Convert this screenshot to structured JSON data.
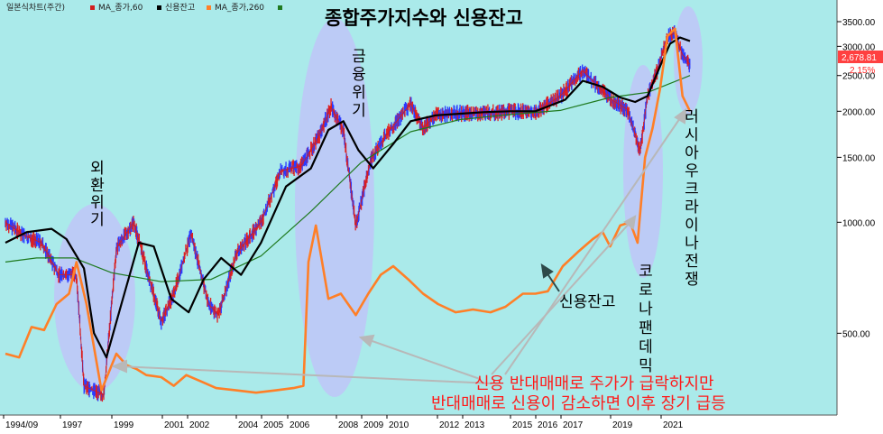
{
  "header": {
    "legend": [
      {
        "label": "일본식차트(주간)",
        "color": "#d21e1e"
      },
      {
        "label": "MA_종가,60",
        "color": "#000000"
      },
      {
        "label": "신용잔고",
        "color": "#ff7f27"
      },
      {
        "label": "MA_종가,260",
        "color": "#1f7a1f"
      }
    ]
  },
  "chart_data": {
    "type": "line",
    "title": "종합주가지수와 신용잔고",
    "x_ticks": [
      "1994/09",
      "1997",
      "1999",
      "2001",
      "2002",
      "2004",
      "2005",
      "2006",
      "2008",
      "2009",
      "2010",
      "2012",
      "2013",
      "2015",
      "2016",
      "2017",
      "2019",
      "2021"
    ],
    "y_ticks": [
      "3500.00",
      "3000.00",
      "2500.00",
      "2000.00",
      "1500.00",
      "1000.00",
      "500.00"
    ],
    "y_scale": "log",
    "ylim": [
      300,
      3600
    ],
    "current_value": "2,678.81",
    "change_pct": "2.15%",
    "grid": false,
    "series": [
      {
        "name": "일본식차트(주간)",
        "color": "#d21e1e",
        "x": [
          1994.75,
          1995.5,
          1996.2,
          1996.9,
          1997.6,
          1997.9,
          1998.7,
          1999.2,
          1999.9,
          2000.5,
          2001.0,
          2001.5,
          2002.2,
          2002.9,
          2003.3,
          2004.0,
          2005.0,
          2005.8,
          2006.6,
          2007.3,
          2007.8,
          2008.3,
          2008.8,
          2009.4,
          2010.0,
          2011.0,
          2011.5,
          2012.0,
          2013.0,
          2014.0,
          2015.0,
          2016.0,
          2017.0,
          2017.9,
          2018.6,
          2019.1,
          2019.7,
          2020.2,
          2020.5,
          2020.9,
          2021.3,
          2021.6,
          2021.9,
          2022.2
        ],
        "y": [
          1000,
          920,
          880,
          720,
          720,
          360,
          340,
          850,
          1000,
          710,
          540,
          640,
          930,
          600,
          560,
          820,
          1000,
          1380,
          1420,
          1700,
          2060,
          1780,
          980,
          1480,
          1720,
          2100,
          1800,
          1950,
          1980,
          1980,
          2000,
          1990,
          2200,
          2580,
          2300,
          2140,
          2020,
          1560,
          2200,
          2600,
          3200,
          3250,
          2850,
          2680
        ]
      },
      {
        "name": "MA_종가,60",
        "color": "#000000",
        "x": [
          1994.75,
          1995.6,
          1996.6,
          1997.2,
          1997.9,
          1998.3,
          1998.8,
          1999.4,
          2000.1,
          2000.7,
          2001.4,
          2002.1,
          2002.7,
          2003.4,
          2004.2,
          2005.0,
          2006.0,
          2007.0,
          2007.7,
          2008.3,
          2008.9,
          2009.5,
          2010.3,
          2011.0,
          2012.0,
          2013.0,
          2014.0,
          2015.0,
          2016.0,
          2017.2,
          2017.9,
          2018.7,
          2019.4,
          2020.0,
          2020.5,
          2021.0,
          2021.4,
          2021.8,
          2022.2
        ],
        "y": [
          880,
          940,
          960,
          900,
          750,
          500,
          430,
          600,
          880,
          860,
          620,
          570,
          700,
          800,
          720,
          880,
          1250,
          1400,
          1780,
          1880,
          1570,
          1400,
          1630,
          1880,
          1950,
          1970,
          1990,
          2000,
          2000,
          2150,
          2420,
          2330,
          2180,
          2120,
          2200,
          2650,
          3050,
          3170,
          3100
        ]
      },
      {
        "name": "MA_종가,260",
        "color": "#1f7a1f",
        "x": [
          1994.75,
          1996.0,
          1997.5,
          1999.0,
          2001.0,
          2003.0,
          2005.0,
          2007.0,
          2009.0,
          2011.0,
          2013.0,
          2015.0,
          2017.0,
          2019.0,
          2020.5,
          2022.2
        ],
        "y": [
          780,
          800,
          800,
          730,
          690,
          700,
          810,
          1070,
          1450,
          1760,
          1900,
          1960,
          2010,
          2180,
          2250,
          2500
        ]
      },
      {
        "name": "신용잔고",
        "color": "#ff7f27",
        "x": [
          1994.75,
          1995.3,
          1995.8,
          1996.3,
          1996.8,
          1997.3,
          1997.6,
          1998.0,
          1998.6,
          1999.2,
          1999.6,
          2000.0,
          2000.4,
          2001.0,
          2001.5,
          2002.0,
          2002.6,
          2003.2,
          2004.0,
          2004.8,
          2005.6,
          2006.3,
          2006.7,
          2006.9,
          2007.2,
          2007.7,
          2008.2,
          2008.8,
          2009.3,
          2009.8,
          2010.3,
          2010.9,
          2011.5,
          2012.1,
          2012.8,
          2013.5,
          2014.2,
          2014.8,
          2015.5,
          2016.0,
          2016.5,
          2017.1,
          2017.7,
          2018.3,
          2018.7,
          2019.0,
          2019.4,
          2019.8,
          2020.1,
          2020.4,
          2020.7,
          2021.0,
          2021.3,
          2021.6,
          2021.9,
          2022.2
        ],
        "y": [
          440,
          430,
          520,
          510,
          600,
          640,
          780,
          600,
          350,
          440,
          410,
          400,
          385,
          380,
          360,
          385,
          370,
          355,
          350,
          345,
          350,
          355,
          360,
          780,
          980,
          620,
          640,
          560,
          640,
          720,
          760,
          700,
          640,
          600,
          570,
          580,
          570,
          590,
          640,
          640,
          650,
          760,
          830,
          900,
          940,
          860,
          980,
          1000,
          880,
          1500,
          1800,
          2300,
          3200,
          3350,
          2200,
          2000
        ]
      }
    ],
    "annotations": {
      "crisis_labels": [
        "외환위기",
        "금융위기",
        "코로나팬데믹",
        "러시아우크라이나전쟁"
      ],
      "margin_label": "신용잔고",
      "note_line1": "신용 반대매매로 주가가 급락하지만",
      "note_line2": "반대매매로 신용이 감소하면 이후 장기 급등"
    },
    "colors": {
      "background": "#aaeaea",
      "highlight": "#c2c2f8"
    }
  }
}
